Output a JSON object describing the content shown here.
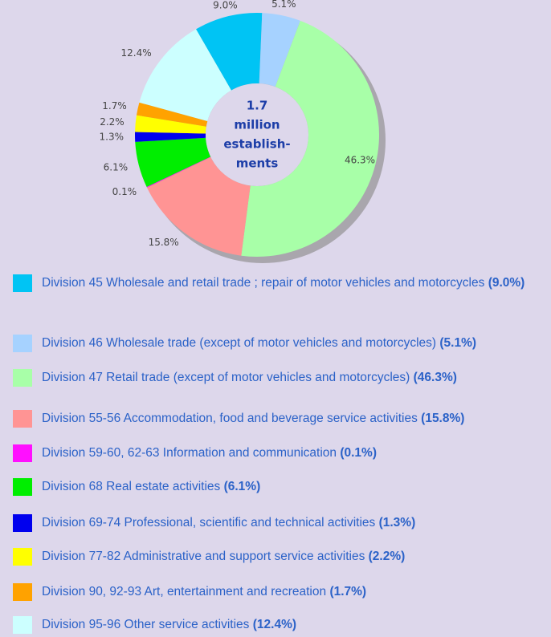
{
  "chart_data": {
    "type": "donut",
    "categories": [
      "Division 45 Wholesale and retail trade ; repair of motor vehicles and motorcycles",
      "Division 46 Wholesale trade (except of motor vehicles and motorcycles)",
      "Division 47 Retail trade (except of motor vehicles and motorcycles)",
      "Division 55-56 Accommodation, food and beverage service activities",
      "Division 59-60, 62-63 Information and communication",
      "Division 68 Real estate activities",
      "Division 69-74 Professional, scientific and technical activities",
      "Division 77-82 Administrative and support service activities",
      "Division 90, 92-93 Art, entertainment and recreation",
      "Division 95-96 Other service activities"
    ],
    "values": [
      9.0,
      5.1,
      46.3,
      15.8,
      0.1,
      6.1,
      1.3,
      2.2,
      1.7,
      12.4
    ],
    "value_labels": [
      "9.0%",
      "5.1%",
      "46.3%",
      "15.8%",
      "0.1%",
      "6.1%",
      "1.3%",
      "2.2%",
      "1.7%",
      "12.4%"
    ],
    "legend_value_labels": [
      "(9.0%)",
      "(5.1%)",
      "(46.3%)",
      "(15.8%)",
      "(0.1%)",
      "(6.1%)",
      "(1.3%)",
      "(2.2%)",
      "(1.7%)",
      "(12.4%)"
    ],
    "colors": [
      "#00c4f4",
      "#a6d2ff",
      "#a8ffa8",
      "#ff9494",
      "#ff10ff",
      "#00ee00",
      "#0000ee",
      "#ffff00",
      "#ffa200",
      "#ccffff"
    ],
    "center_label": [
      "1.7",
      "million",
      "establish-",
      "ments"
    ]
  }
}
